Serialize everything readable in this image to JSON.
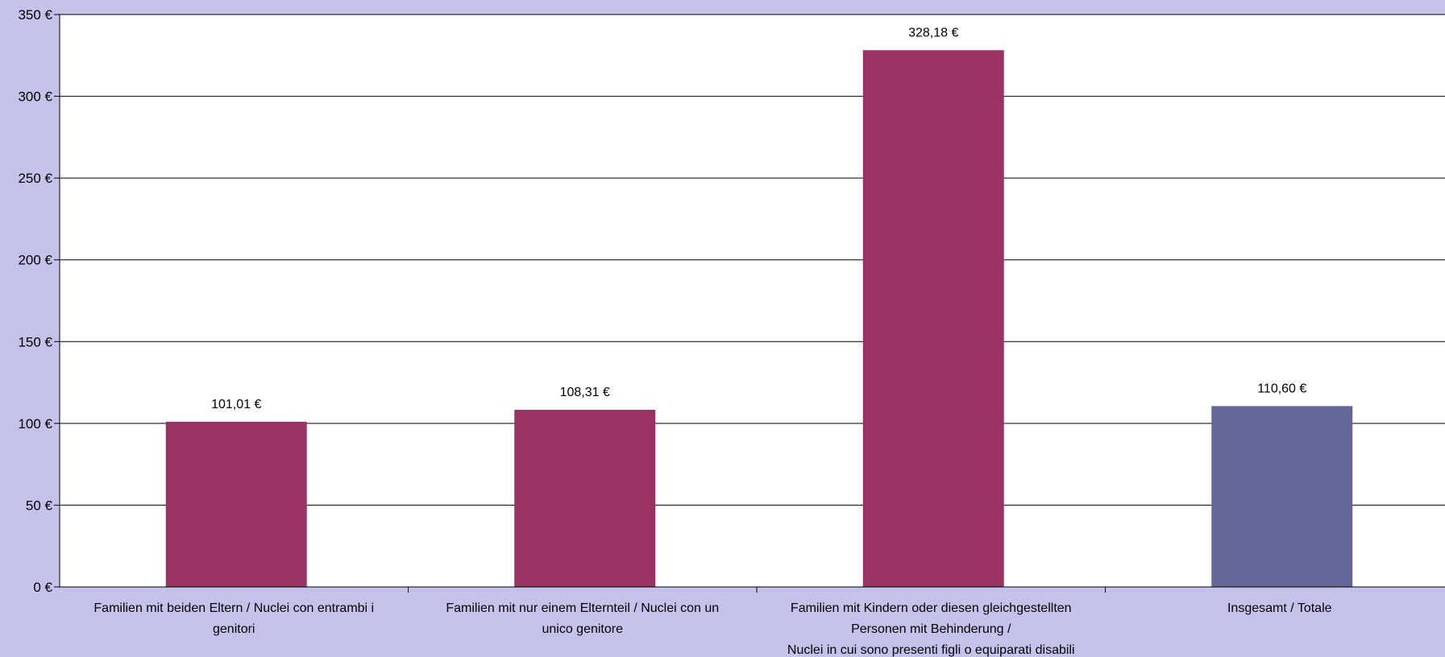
{
  "colors": {
    "page_background": "#c4c1ea",
    "plot_background": "#ffffff",
    "bar_primary": "#993366",
    "bar_total": "#666699",
    "grid": "#000000"
  },
  "chart_data": {
    "type": "bar",
    "title": "",
    "xlabel": "",
    "ylabel": "",
    "ylim": [
      0,
      350
    ],
    "y_ticks": [
      0,
      50,
      100,
      150,
      200,
      250,
      300,
      350
    ],
    "y_tick_labels": [
      "0 €",
      "50 €",
      "100 €",
      "150 €",
      "200 €",
      "250 €",
      "300 €",
      "350 €"
    ],
    "grid": true,
    "legend": "none",
    "categories": [
      [
        "Familien mit beiden Eltern / Nuclei con entrambi i",
        "genitori"
      ],
      [
        "Familien mit nur einem Elternteil / Nuclei con un",
        "unico genitore"
      ],
      [
        "Familien mit Kindern oder diesen gleichgestellten",
        "Personen mit Behinderung /",
        "Nuclei in cui sono presenti figli o equiparati disabili"
      ],
      [
        "Insgesamt / Totale"
      ]
    ],
    "values": [
      101.01,
      108.31,
      328.18,
      110.6
    ],
    "data_labels": [
      "101,01 €",
      "108,31 €",
      "328,18 €",
      "110,60 €"
    ],
    "bar_colors": [
      "#993366",
      "#993366",
      "#993366",
      "#666699"
    ]
  }
}
